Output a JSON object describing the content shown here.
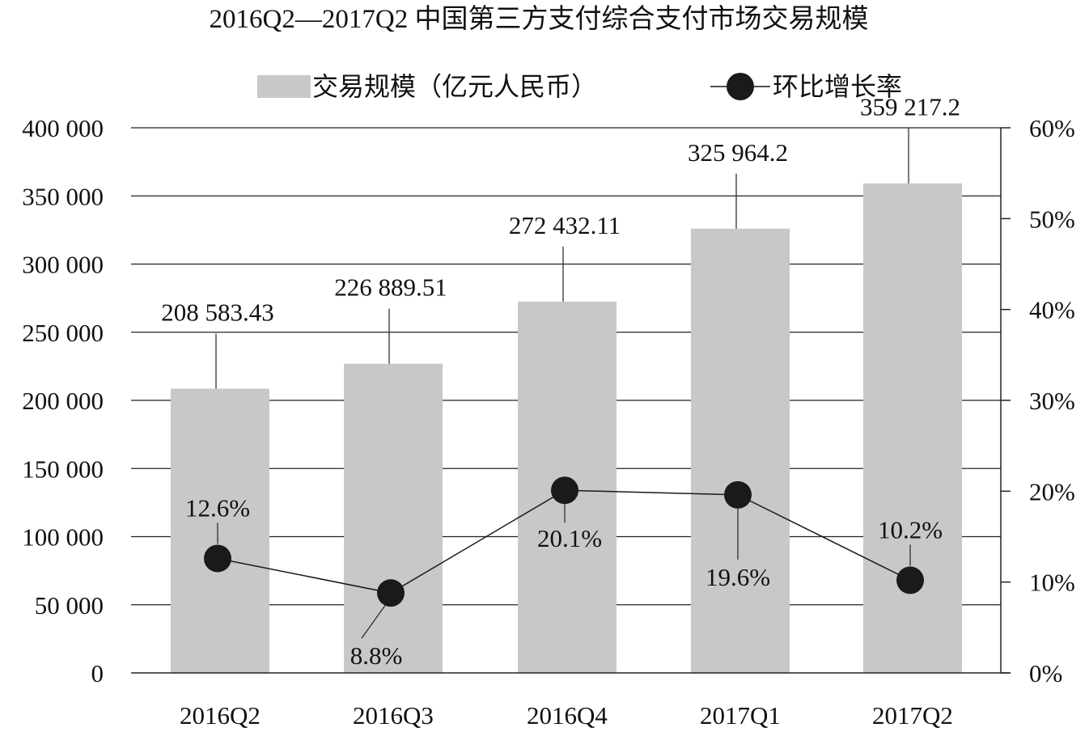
{
  "chart_data": {
    "type": "bar",
    "title": "2016Q2—2017Q2 中国第三方支付综合支付市场交易规模",
    "categories": [
      "2016Q2",
      "2016Q3",
      "2016Q4",
      "2017Q1",
      "2017Q2"
    ],
    "series": [
      {
        "name": "交易规模（亿元人民币）",
        "type": "bar",
        "axis": "left",
        "values": [
          208583.43,
          226889.51,
          272432.11,
          325964.2,
          359217.2
        ],
        "labels": [
          "208 583.43",
          "226 889.51",
          "272 432.11",
          "325 964.2",
          "359 217.2"
        ],
        "color": "#c8c8c8"
      },
      {
        "name": "环比增长率",
        "type": "line",
        "axis": "right",
        "values": [
          12.6,
          8.8,
          20.1,
          19.6,
          10.2
        ],
        "labels": [
          "12.6%",
          "8.8%",
          "20.1%",
          "19.6%",
          "10.2%"
        ],
        "color": "#1a1a1a"
      }
    ],
    "y_left": {
      "range": [
        0,
        400000
      ],
      "ticks": [
        0,
        50000,
        100000,
        150000,
        200000,
        250000,
        300000,
        350000,
        400000
      ],
      "tick_labels": [
        "0",
        "50 000",
        "100 000",
        "150 000",
        "200 000",
        "250 000",
        "300 000",
        "350 000",
        "400 000"
      ]
    },
    "y_right": {
      "range": [
        0,
        60
      ],
      "ticks": [
        0,
        10,
        20,
        30,
        40,
        50,
        60
      ],
      "tick_labels": [
        "0%",
        "10%",
        "20%",
        "30%",
        "40%",
        "50%",
        "60%"
      ]
    },
    "grid": true,
    "legend": "top-center"
  }
}
